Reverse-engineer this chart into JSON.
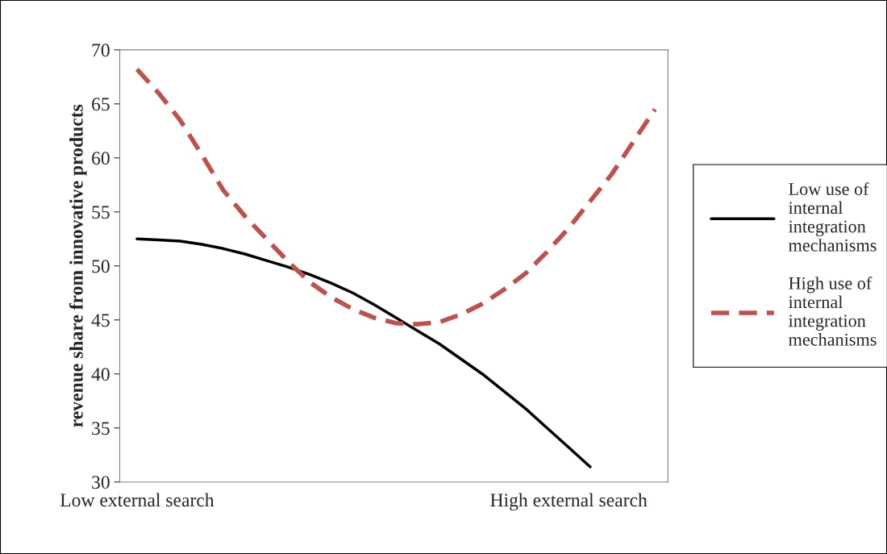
{
  "chart_data": {
    "type": "line",
    "ylabel": "revenue share from innovative products",
    "categories": [
      "Low external search",
      null,
      null,
      null,
      null,
      null,
      null,
      null,
      null,
      null,
      null,
      null,
      null,
      null,
      null,
      null,
      null,
      null,
      null,
      null,
      "High external search",
      null,
      null,
      null,
      null
    ],
    "ylim": [
      30,
      70
    ],
    "yticks": [
      30,
      35,
      40,
      45,
      50,
      55,
      60,
      65,
      70
    ],
    "grid": false,
    "legend": "right",
    "marker": "none",
    "series": [
      {
        "name": "Low use of internal integration mechanisms",
        "color": "#000000",
        "line_style": "solid",
        "values": [
          52.5,
          52.4,
          52.3,
          52,
          51.6,
          51.1,
          50.5,
          49.9,
          49.2,
          48.4,
          47.5,
          46.4,
          45.2,
          44,
          42.8,
          41.4,
          40,
          38.4,
          36.8,
          35,
          33.2,
          31.4,
          null,
          null,
          null
        ]
      },
      {
        "name": "High use of internal integration mechanisms",
        "color": "#c0504d",
        "line_style": "dashed",
        "values": [
          68.2,
          66,
          63.5,
          60.3,
          57,
          54.6,
          52.5,
          50.4,
          48.5,
          47.1,
          46,
          45.2,
          44.7,
          44.6,
          44.8,
          45.5,
          46.5,
          47.8,
          49.3,
          51.3,
          53.5,
          56,
          58.5,
          61.5,
          64.5
        ]
      }
    ]
  }
}
